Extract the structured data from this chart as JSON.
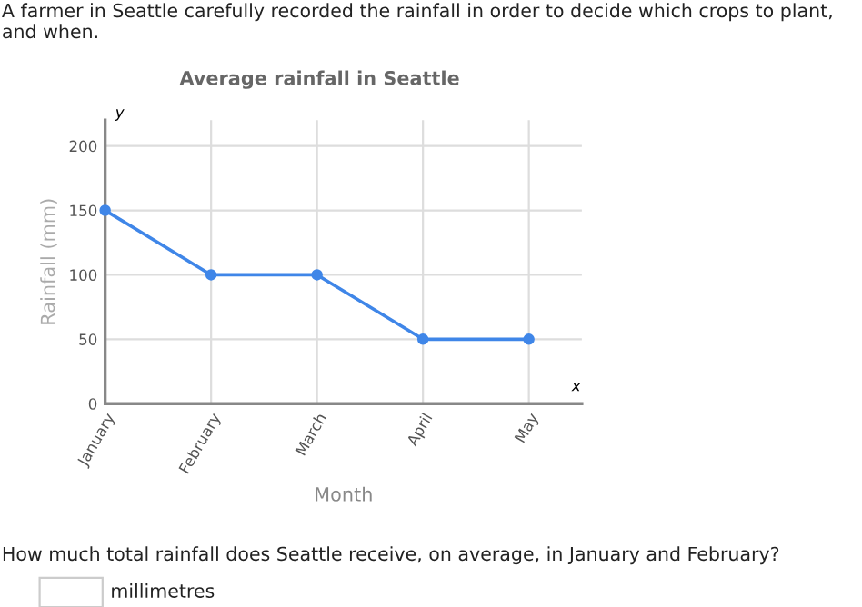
{
  "chart_data": {
    "type": "line",
    "title": "Average rainfall in Seattle",
    "xlabel": "Month",
    "ylabel": "Rainfall (mm)",
    "categories": [
      "January",
      "February",
      "March",
      "April",
      "May"
    ],
    "series": [
      {
        "color": "#3f86e8",
        "values": [
          150,
          100,
          100,
          50,
          50
        ]
      }
    ],
    "ylim": [
      0,
      220
    ],
    "yticks": [
      0,
      50,
      100,
      150,
      200
    ],
    "grid": true,
    "marker": "circle",
    "line_style": "solid",
    "annotations": [
      "A farmer in Seattle carefully recorded the rainfall in order to decide which crops to plant, and when.",
      "How much total rainfall does Seattle receive, on average, in January and February?",
      "millimetres",
      "x",
      "y"
    ]
  }
}
